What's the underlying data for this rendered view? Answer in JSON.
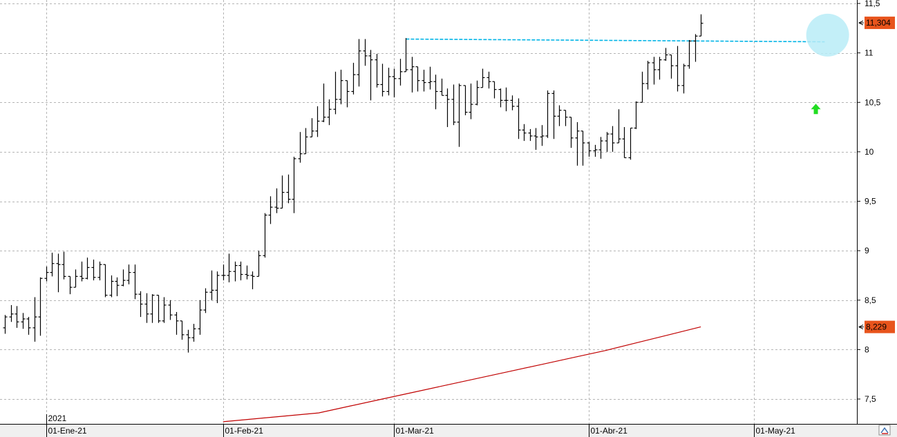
{
  "chart_data": {
    "type": "ohlc",
    "y_axis": {
      "min": 7.2,
      "max": 11.5,
      "ticks": [
        7.5,
        8,
        8.5,
        9,
        9.5,
        10,
        10.5,
        11,
        11.5
      ],
      "tick_labels": [
        "7,5",
        "8",
        "8,5",
        "9",
        "9,5",
        "10",
        "10,5",
        "11",
        "11,5"
      ],
      "position": "right"
    },
    "x_axis": {
      "labels": [
        {
          "text": "01-Ene-21",
          "bar_index": 7
        },
        {
          "text": "01-Feb-21",
          "bar_index": 37
        },
        {
          "text": "01-Mar-21",
          "bar_index": 66
        },
        {
          "text": "01-Abr-21",
          "bar_index": 99
        },
        {
          "text": "01-May-21",
          "bar_index": 127
        }
      ],
      "year_label": {
        "text": "2021",
        "bar_index": 7
      },
      "bar_count": 142
    },
    "grid": true,
    "price_bars": [
      {
        "o": 8.22,
        "h": 8.35,
        "l": 8.16,
        "c": 8.33
      },
      {
        "o": 8.33,
        "h": 8.45,
        "l": 8.28,
        "c": 8.36
      },
      {
        "o": 8.36,
        "h": 8.44,
        "l": 8.22,
        "c": 8.28
      },
      {
        "o": 8.28,
        "h": 8.37,
        "l": 8.21,
        "c": 8.31
      },
      {
        "o": 8.31,
        "h": 8.33,
        "l": 8.15,
        "c": 8.22
      },
      {
        "o": 8.22,
        "h": 8.53,
        "l": 8.08,
        "c": 8.33
      },
      {
        "o": 8.33,
        "h": 8.73,
        "l": 8.14,
        "c": 8.72
      },
      {
        "o": 8.72,
        "h": 8.84,
        "l": 8.69,
        "c": 8.78
      },
      {
        "o": 8.78,
        "h": 8.98,
        "l": 8.74,
        "c": 8.87
      },
      {
        "o": 8.87,
        "h": 8.97,
        "l": 8.58,
        "c": 8.86
      },
      {
        "o": 8.86,
        "h": 8.99,
        "l": 8.71,
        "c": 8.74
      },
      {
        "o": 8.74,
        "h": 8.73,
        "l": 8.56,
        "c": 8.63
      },
      {
        "o": 8.63,
        "h": 8.81,
        "l": 8.63,
        "c": 8.74
      },
      {
        "o": 8.74,
        "h": 8.89,
        "l": 8.69,
        "c": 8.72
      },
      {
        "o": 8.72,
        "h": 8.93,
        "l": 8.71,
        "c": 8.83
      },
      {
        "o": 8.83,
        "h": 8.91,
        "l": 8.7,
        "c": 8.73
      },
      {
        "o": 8.73,
        "h": 8.89,
        "l": 8.7,
        "c": 8.86
      },
      {
        "o": 8.86,
        "h": 8.86,
        "l": 8.53,
        "c": 8.55
      },
      {
        "o": 8.55,
        "h": 8.75,
        "l": 8.53,
        "c": 8.69
      },
      {
        "o": 8.69,
        "h": 8.73,
        "l": 8.54,
        "c": 8.65
      },
      {
        "o": 8.65,
        "h": 8.81,
        "l": 8.64,
        "c": 8.7
      },
      {
        "o": 8.7,
        "h": 8.86,
        "l": 8.66,
        "c": 8.78
      },
      {
        "o": 8.78,
        "h": 8.86,
        "l": 8.51,
        "c": 8.56
      },
      {
        "o": 8.56,
        "h": 8.59,
        "l": 8.33,
        "c": 8.46
      },
      {
        "o": 8.46,
        "h": 8.57,
        "l": 8.27,
        "c": 8.36
      },
      {
        "o": 8.36,
        "h": 8.56,
        "l": 8.27,
        "c": 8.55
      },
      {
        "o": 8.55,
        "h": 8.55,
        "l": 8.27,
        "c": 8.29
      },
      {
        "o": 8.29,
        "h": 8.53,
        "l": 8.27,
        "c": 8.45
      },
      {
        "o": 8.45,
        "h": 8.5,
        "l": 8.3,
        "c": 8.35
      },
      {
        "o": 8.35,
        "h": 8.38,
        "l": 8.15,
        "c": 8.29
      },
      {
        "o": 8.29,
        "h": 8.25,
        "l": 8.1,
        "c": 8.15
      },
      {
        "o": 8.15,
        "h": 8.2,
        "l": 7.97,
        "c": 8.12
      },
      {
        "o": 8.12,
        "h": 8.26,
        "l": 8.08,
        "c": 8.21
      },
      {
        "o": 8.21,
        "h": 8.5,
        "l": 8.15,
        "c": 8.4
      },
      {
        "o": 8.4,
        "h": 8.62,
        "l": 8.37,
        "c": 8.58
      },
      {
        "o": 8.58,
        "h": 8.8,
        "l": 8.5,
        "c": 8.6
      },
      {
        "o": 8.6,
        "h": 8.79,
        "l": 8.47,
        "c": 8.75
      },
      {
        "o": 8.75,
        "h": 8.86,
        "l": 8.7,
        "c": 8.75
      },
      {
        "o": 8.75,
        "h": 8.97,
        "l": 8.68,
        "c": 8.79
      },
      {
        "o": 8.79,
        "h": 8.89,
        "l": 8.69,
        "c": 8.85
      },
      {
        "o": 8.85,
        "h": 8.89,
        "l": 8.7,
        "c": 8.76
      },
      {
        "o": 8.76,
        "h": 8.85,
        "l": 8.71,
        "c": 8.75
      },
      {
        "o": 8.75,
        "h": 8.79,
        "l": 8.61,
        "c": 8.74
      },
      {
        "o": 8.74,
        "h": 9.0,
        "l": 8.9,
        "c": 8.95
      },
      {
        "o": 8.95,
        "h": 9.38,
        "l": 8.93,
        "c": 9.36
      },
      {
        "o": 9.36,
        "h": 9.55,
        "l": 9.27,
        "c": 9.44
      },
      {
        "o": 9.44,
        "h": 9.63,
        "l": 9.38,
        "c": 9.43
      },
      {
        "o": 9.43,
        "h": 9.76,
        "l": 9.46,
        "c": 9.59
      },
      {
        "o": 9.59,
        "h": 9.77,
        "l": 9.48,
        "c": 9.52
      },
      {
        "o": 9.52,
        "h": 9.95,
        "l": 9.38,
        "c": 9.93
      },
      {
        "o": 9.93,
        "h": 10.2,
        "l": 9.89,
        "c": 9.98
      },
      {
        "o": 9.98,
        "h": 10.24,
        "l": 10.0,
        "c": 10.15
      },
      {
        "o": 10.15,
        "h": 10.34,
        "l": 10.15,
        "c": 10.21
      },
      {
        "o": 10.21,
        "h": 10.46,
        "l": 10.15,
        "c": 10.31
      },
      {
        "o": 10.31,
        "h": 10.69,
        "l": 10.3,
        "c": 10.35
      },
      {
        "o": 10.35,
        "h": 10.53,
        "l": 10.27,
        "c": 10.43
      },
      {
        "o": 10.43,
        "h": 10.81,
        "l": 10.38,
        "c": 10.53
      },
      {
        "o": 10.53,
        "h": 10.83,
        "l": 10.48,
        "c": 10.72
      },
      {
        "o": 10.72,
        "h": 10.7,
        "l": 10.45,
        "c": 10.61
      },
      {
        "o": 10.61,
        "h": 10.9,
        "l": 10.58,
        "c": 10.78
      },
      {
        "o": 10.78,
        "h": 11.14,
        "l": 10.66,
        "c": 11.02
      },
      {
        "o": 11.02,
        "h": 11.14,
        "l": 10.87,
        "c": 10.97
      },
      {
        "o": 10.97,
        "h": 11.03,
        "l": 10.52,
        "c": 10.93
      },
      {
        "o": 10.93,
        "h": 10.99,
        "l": 10.65,
        "c": 10.68
      },
      {
        "o": 10.68,
        "h": 10.89,
        "l": 10.56,
        "c": 10.61
      },
      {
        "o": 10.61,
        "h": 10.85,
        "l": 10.57,
        "c": 10.76
      },
      {
        "o": 10.76,
        "h": 10.84,
        "l": 10.55,
        "c": 10.74
      },
      {
        "o": 10.74,
        "h": 10.94,
        "l": 10.67,
        "c": 10.81
      },
      {
        "o": 10.81,
        "h": 11.15,
        "l": 10.83,
        "c": 10.83
      },
      {
        "o": 10.83,
        "h": 10.96,
        "l": 10.6,
        "c": 10.86
      },
      {
        "o": 10.86,
        "h": 10.8,
        "l": 10.61,
        "c": 10.72
      },
      {
        "o": 10.72,
        "h": 10.83,
        "l": 10.61,
        "c": 10.7
      },
      {
        "o": 10.7,
        "h": 10.86,
        "l": 10.63,
        "c": 10.71
      },
      {
        "o": 10.71,
        "h": 10.78,
        "l": 10.43,
        "c": 10.61
      },
      {
        "o": 10.61,
        "h": 10.74,
        "l": 10.57,
        "c": 10.57
      },
      {
        "o": 10.57,
        "h": 10.64,
        "l": 10.25,
        "c": 10.53
      },
      {
        "o": 10.53,
        "h": 10.68,
        "l": 10.27,
        "c": 10.3
      },
      {
        "o": 10.3,
        "h": 10.69,
        "l": 10.05,
        "c": 10.67
      },
      {
        "o": 10.67,
        "h": 10.59,
        "l": 10.37,
        "c": 10.4
      },
      {
        "o": 10.4,
        "h": 10.69,
        "l": 10.33,
        "c": 10.48
      },
      {
        "o": 10.48,
        "h": 10.72,
        "l": 10.47,
        "c": 10.65
      },
      {
        "o": 10.65,
        "h": 10.84,
        "l": 10.68,
        "c": 10.75
      },
      {
        "o": 10.75,
        "h": 10.81,
        "l": 10.64,
        "c": 10.71
      },
      {
        "o": 10.71,
        "h": 10.68,
        "l": 10.54,
        "c": 10.63
      },
      {
        "o": 10.63,
        "h": 10.64,
        "l": 10.45,
        "c": 10.52
      },
      {
        "o": 10.52,
        "h": 10.65,
        "l": 10.41,
        "c": 10.52
      },
      {
        "o": 10.52,
        "h": 10.57,
        "l": 10.42,
        "c": 10.46
      },
      {
        "o": 10.46,
        "h": 10.54,
        "l": 10.13,
        "c": 10.22
      },
      {
        "o": 10.22,
        "h": 10.28,
        "l": 10.11,
        "c": 10.19
      },
      {
        "o": 10.19,
        "h": 10.23,
        "l": 10.11,
        "c": 10.16
      },
      {
        "o": 10.16,
        "h": 10.24,
        "l": 10.02,
        "c": 10.15
      },
      {
        "o": 10.15,
        "h": 10.27,
        "l": 10.06,
        "c": 10.16
      },
      {
        "o": 10.16,
        "h": 10.62,
        "l": 10.14,
        "c": 10.59
      },
      {
        "o": 10.59,
        "h": 10.62,
        "l": 10.13,
        "c": 10.36
      },
      {
        "o": 10.36,
        "h": 10.47,
        "l": 10.26,
        "c": 10.42
      },
      {
        "o": 10.42,
        "h": 10.37,
        "l": 10.26,
        "c": 10.35
      },
      {
        "o": 10.35,
        "h": 10.31,
        "l": 10.04,
        "c": 10.14
      },
      {
        "o": 10.14,
        "h": 10.3,
        "l": 9.86,
        "c": 10.21
      },
      {
        "o": 10.21,
        "h": 10.14,
        "l": 9.86,
        "c": 10.09
      },
      {
        "o": 10.09,
        "h": 10.1,
        "l": 9.95,
        "c": 10.01
      },
      {
        "o": 10.01,
        "h": 10.07,
        "l": 9.95,
        "c": 10.02
      },
      {
        "o": 10.02,
        "h": 10.15,
        "l": 9.93,
        "c": 10.11
      },
      {
        "o": 10.11,
        "h": 10.2,
        "l": 10.0,
        "c": 10.18
      },
      {
        "o": 10.18,
        "h": 10.26,
        "l": 10.0,
        "c": 10.09
      },
      {
        "o": 10.09,
        "h": 10.43,
        "l": 10.11,
        "c": 10.13
      },
      {
        "o": 10.13,
        "h": 10.25,
        "l": 9.94,
        "c": 9.94
      },
      {
        "o": 9.94,
        "h": 10.24,
        "l": 9.92,
        "c": 10.24
      },
      {
        "o": 10.24,
        "h": 10.51,
        "l": 10.23,
        "c": 10.5
      },
      {
        "o": 10.5,
        "h": 10.81,
        "l": 10.58,
        "c": 10.69
      },
      {
        "o": 10.69,
        "h": 10.92,
        "l": 10.63,
        "c": 10.9
      },
      {
        "o": 10.9,
        "h": 10.96,
        "l": 10.68,
        "c": 10.83
      },
      {
        "o": 10.83,
        "h": 10.96,
        "l": 10.73,
        "c": 10.93
      },
      {
        "o": 10.93,
        "h": 11.05,
        "l": 10.92,
        "c": 10.98
      },
      {
        "o": 10.98,
        "h": 10.98,
        "l": 10.74,
        "c": 10.87
      },
      {
        "o": 10.87,
        "h": 11.07,
        "l": 10.61,
        "c": 10.67
      },
      {
        "o": 10.67,
        "h": 10.89,
        "l": 10.59,
        "c": 10.87
      },
      {
        "o": 10.87,
        "h": 11.13,
        "l": 10.84,
        "c": 11.12
      },
      {
        "o": 11.12,
        "h": 11.19,
        "l": 10.91,
        "c": 11.17
      },
      {
        "o": 11.17,
        "h": 11.39,
        "l": 11.22,
        "c": 11.3
      }
    ],
    "annotations": [
      {
        "type": "resistance",
        "style": "dashed",
        "color": "#00b4e6",
        "value": 11.14
      },
      {
        "type": "highlight-circle",
        "color": "#b9ecf7"
      },
      {
        "type": "up-arrow",
        "color": "#22dd22"
      }
    ],
    "moving_average": {
      "color": "#c00000",
      "start_bar": 37,
      "start_value": 7.27,
      "points": [
        7.27,
        7.3,
        7.33,
        7.36,
        7.43,
        7.5,
        7.57,
        7.64,
        7.71,
        7.78,
        7.85,
        7.92,
        7.99,
        8.07,
        8.15,
        8.23
      ]
    },
    "last_price_badges": [
      {
        "label": "11,304",
        "value": 11.304,
        "color": "#e8541c"
      },
      {
        "label": "8,229",
        "value": 8.229,
        "color": "#e8541c"
      }
    ]
  }
}
